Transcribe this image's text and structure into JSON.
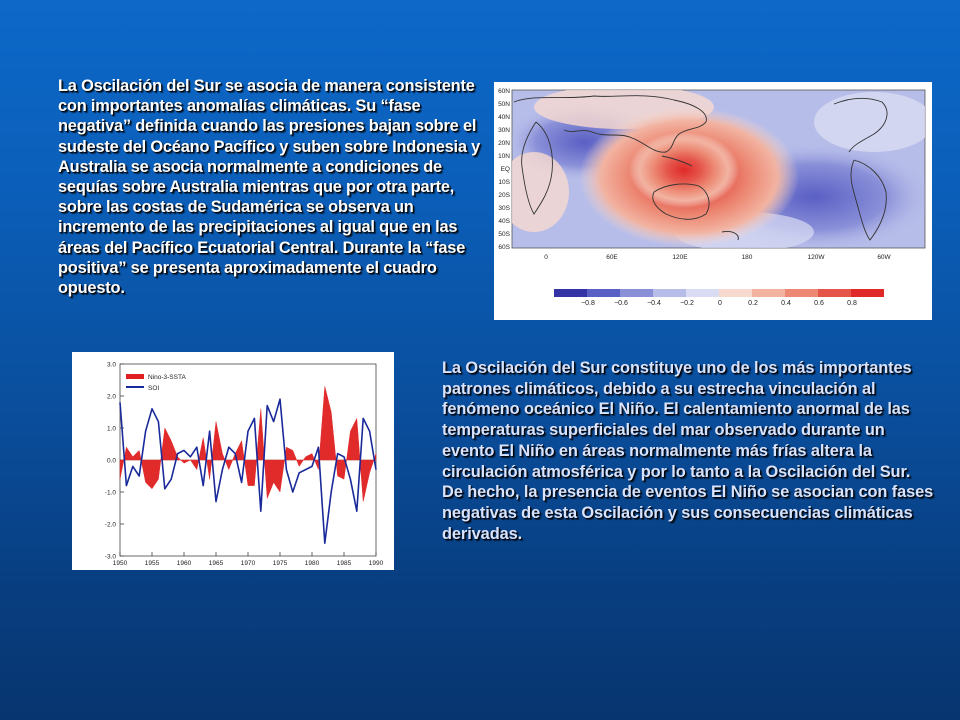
{
  "slide": {
    "paragraph1": "La Oscilación del Sur se asocia de manera consistente con importantes anomalías climáticas. Su “fase negativa” definida cuando las presiones bajan sobre el sudeste del Océano Pacífico y suben sobre Indonesia y Australia se asocia normalmente a condiciones de sequías sobre Australia mientras que por otra parte, sobre las costas de Sudamérica se observa un incremento de las precipitaciones al igual que en las áreas del Pacífico Ecuatorial Central. Durante la “fase positiva” se presenta aproximadamente el cuadro opuesto.",
    "paragraph2": "La Oscilación del Sur constituye uno de los más importantes patrones climáticos, debido a su estrecha vinculación al fenómeno oceánico El Niño. El calentamiento anormal de las temperaturas superficiales del mar observado durante un evento El Niño en áreas normalmente más frías altera la circulación atmosférica y por lo tanto a la Oscilación del Sur. De hecho, la presencia de eventos El Niño se asocian con fases negativas de esta Oscilación y sus consecuencias climáticas derivadas."
  },
  "map": {
    "lat_labels": [
      "60N",
      "50N",
      "40N",
      "30N",
      "20N",
      "10N",
      "EQ",
      "10S",
      "20S",
      "30S",
      "40S",
      "50S",
      "60S"
    ],
    "lon_labels": [
      "0",
      "60E",
      "120E",
      "180",
      "120W",
      "60W"
    ],
    "colorbar_labels": [
      "−0.8",
      "−0.6",
      "−0.4",
      "−0.2",
      "0",
      "0.2",
      "0.4",
      "0.6",
      "0.8"
    ],
    "colorbar_colors": [
      "#3333a6",
      "#5a5fc4",
      "#8a90d8",
      "#b7bde9",
      "#d9dcf3",
      "#f7d9cf",
      "#f2b3a1",
      "#ec8873",
      "#e5554a",
      "#e02a2a"
    ]
  },
  "chart_data": {
    "type": "line",
    "x_ticks": [
      "1950",
      "1955",
      "1960",
      "1965",
      "1970",
      "1975",
      "1980",
      "1985",
      "1990"
    ],
    "y_ticks": [
      "3.0",
      "2.0",
      "1.0",
      "0.0",
      "-1.0",
      "-2.0",
      "-3.0"
    ],
    "xlim": [
      1950,
      1990
    ],
    "ylim": [
      -3,
      3
    ],
    "series": [
      {
        "name": "Nino-3-SSTA",
        "color": "#e02020",
        "x": [
          1950,
          1951,
          1952,
          1953,
          1954,
          1955,
          1956,
          1957,
          1958,
          1959,
          1960,
          1961,
          1962,
          1963,
          1964,
          1965,
          1966,
          1967,
          1968,
          1969,
          1970,
          1971,
          1972,
          1973,
          1974,
          1975,
          1976,
          1977,
          1978,
          1979,
          1980,
          1981,
          1982,
          1983,
          1984,
          1985,
          1986,
          1987,
          1988,
          1989,
          1990
        ],
        "values": [
          -0.6,
          0.4,
          0.1,
          0.3,
          -0.7,
          -0.9,
          -0.6,
          1.0,
          0.6,
          0.1,
          -0.1,
          0.0,
          -0.3,
          0.7,
          -0.6,
          1.2,
          0.2,
          -0.3,
          0.2,
          0.6,
          -0.8,
          -0.8,
          1.6,
          -1.2,
          -0.7,
          -1.0,
          0.4,
          0.3,
          -0.2,
          0.1,
          0.2,
          -0.3,
          2.3,
          1.5,
          -0.5,
          -0.6,
          0.9,
          1.3,
          -1.3,
          -0.4,
          0.2
        ]
      },
      {
        "name": "SOI",
        "color": "#1a2a9a",
        "x": [
          1950,
          1951,
          1952,
          1953,
          1954,
          1955,
          1956,
          1957,
          1958,
          1959,
          1960,
          1961,
          1962,
          1963,
          1964,
          1965,
          1966,
          1967,
          1968,
          1969,
          1970,
          1971,
          1972,
          1973,
          1974,
          1975,
          1976,
          1977,
          1978,
          1979,
          1980,
          1981,
          1982,
          1983,
          1984,
          1985,
          1986,
          1987,
          1988,
          1989,
          1990
        ],
        "values": [
          1.8,
          -0.8,
          -0.2,
          -0.5,
          0.9,
          1.6,
          1.2,
          -0.9,
          -0.6,
          0.2,
          0.3,
          0.1,
          0.4,
          -0.8,
          0.9,
          -1.3,
          -0.3,
          0.4,
          0.2,
          -0.7,
          0.9,
          1.3,
          -1.6,
          1.7,
          1.2,
          1.9,
          -0.3,
          -1.0,
          -0.4,
          -0.3,
          -0.2,
          0.4,
          -2.6,
          -1.0,
          0.2,
          0.1,
          -0.6,
          -1.6,
          1.3,
          0.9,
          -0.3
        ]
      }
    ]
  }
}
